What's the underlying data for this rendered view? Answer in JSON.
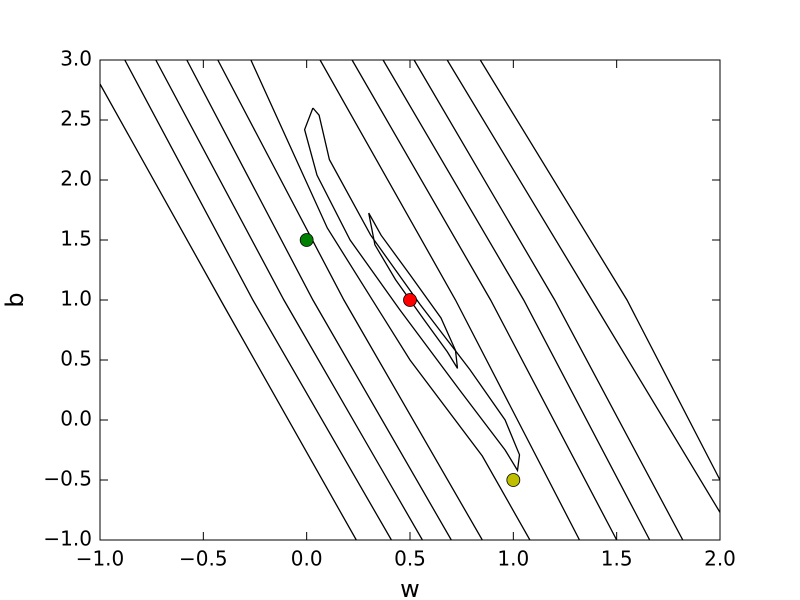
{
  "chart_data": {
    "type": "contour",
    "xlabel": "w",
    "ylabel": "b",
    "xlim": [
      -1,
      2
    ],
    "ylim": [
      -1,
      3
    ],
    "xticks": [
      {
        "value": -1,
        "label": "−1.0"
      },
      {
        "value": -0.5,
        "label": "−0.5"
      },
      {
        "value": 0,
        "label": "0.0"
      },
      {
        "value": 0.5,
        "label": "0.5"
      },
      {
        "value": 1,
        "label": "1.0"
      },
      {
        "value": 1.5,
        "label": "1.5"
      },
      {
        "value": 2,
        "label": "2.0"
      }
    ],
    "yticks": [
      {
        "value": -1,
        "label": "−1.0"
      },
      {
        "value": -0.5,
        "label": "−0.5"
      },
      {
        "value": 0,
        "label": "0.0"
      },
      {
        "value": 0.5,
        "label": "0.5"
      },
      {
        "value": 1,
        "label": "1.0"
      },
      {
        "value": 1.5,
        "label": "1.5"
      },
      {
        "value": 2,
        "label": "2.0"
      },
      {
        "value": 2.5,
        "label": "2.5"
      },
      {
        "value": 3,
        "label": "3.0"
      }
    ],
    "contour_color": "#000000",
    "contours": [
      {
        "x": [
          0.3,
          0.33,
          0.43,
          0.57,
          0.68,
          0.73,
          0.72,
          0.65,
          0.5,
          0.36,
          0.3
        ],
        "y": [
          1.725,
          1.46,
          1.17,
          0.83,
          0.57,
          0.43,
          0.58,
          0.85,
          1.21,
          1.54,
          1.725
        ]
      },
      {
        "x": [
          0.03,
          -0.01,
          0.05,
          0.21,
          0.45,
          0.74,
          0.96,
          1.02,
          1.03,
          0.96,
          0.79,
          0.55,
          0.31,
          0.11,
          0.06,
          0.03
        ],
        "y": [
          2.6,
          2.42,
          2.04,
          1.5,
          0.92,
          0.25,
          -0.25,
          -0.42,
          -0.29,
          0.0,
          0.42,
          0.96,
          1.54,
          2.17,
          2.54,
          2.6
        ]
      },
      {
        "x": [
          -1,
          -0.4,
          0.24
        ],
        "y": [
          2.8,
          0.95,
          -1
        ]
      },
      {
        "x": [
          -0.88,
          -0.26,
          0.41
        ],
        "y": [
          3,
          1,
          -1
        ]
      },
      {
        "x": [
          -0.73,
          -0.11,
          0.56
        ],
        "y": [
          3,
          1,
          -1
        ]
      },
      {
        "x": [
          -0.58,
          0.03,
          0.7
        ],
        "y": [
          3,
          1,
          -1
        ]
      },
      {
        "x": [
          -0.43,
          0.18,
          0.85
        ],
        "y": [
          3,
          1,
          -1
        ]
      },
      {
        "x": [
          -0.27,
          0.1,
          0.5,
          0.85,
          1.08
        ],
        "y": [
          3,
          1.6,
          0.5,
          -0.3,
          -1
        ]
      },
      {
        "x": [
          0.065,
          0.72,
          1.32
        ],
        "y": [
          3,
          1,
          -1
        ]
      },
      {
        "x": [
          0.22,
          0.89,
          1.5
        ],
        "y": [
          3,
          1,
          -1
        ]
      },
      {
        "x": [
          0.37,
          1.05,
          1.66
        ],
        "y": [
          3,
          1,
          -1
        ]
      },
      {
        "x": [
          0.52,
          1.2,
          1.82
        ],
        "y": [
          3,
          1,
          -1
        ]
      },
      {
        "x": [
          0.68,
          1.38,
          2
        ],
        "y": [
          3,
          1,
          -0.77
        ]
      },
      {
        "x": [
          0.84,
          1.55,
          2
        ],
        "y": [
          3,
          1,
          -0.5
        ]
      }
    ],
    "points": [
      {
        "x": 0,
        "y": 1.5,
        "color": "#008000"
      },
      {
        "x": 0.5,
        "y": 1,
        "color": "#ff0000"
      },
      {
        "x": 1,
        "y": -0.5,
        "color": "#bfbf00"
      }
    ]
  }
}
